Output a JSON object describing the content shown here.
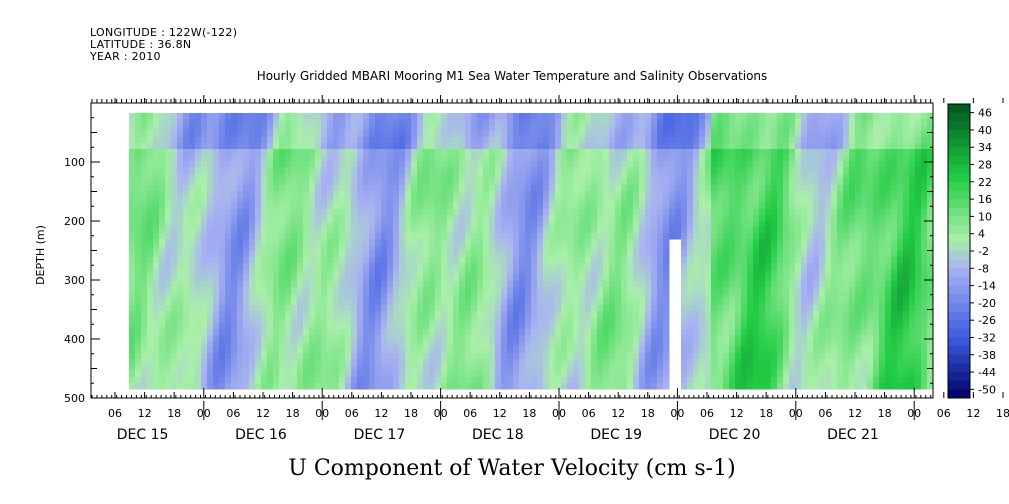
{
  "header": {
    "longitude": "LONGITUDE : 122W(-122)",
    "latitude": "LATITUDE : 36.8N",
    "year": "YEAR : 2010"
  },
  "chart_data": {
    "type": "heatmap",
    "title": "Hourly Gridded MBARI Mooring M1 Sea Water Temperature and Salinity Observations",
    "subtitle": "U Component of Water Velocity (cm s-1)",
    "ylabel": "DEPTH (m)",
    "ylim": [
      500,
      0
    ],
    "y_ticks": [
      100,
      200,
      300,
      400,
      500
    ],
    "x_hour_labels": [
      "06",
      "12",
      "18",
      "00",
      "06",
      "12",
      "18",
      "00",
      "06",
      "12",
      "18",
      "00",
      "06",
      "12",
      "18",
      "00",
      "06",
      "12",
      "18",
      "00",
      "06",
      "12",
      "18",
      "00",
      "06",
      "12",
      "18",
      "00",
      "06",
      "12",
      "18",
      "00"
    ],
    "x_day_labels": [
      "DEC 15",
      "DEC 16",
      "DEC 17",
      "DEC 18",
      "DEC 19",
      "DEC 20",
      "DEC 21"
    ],
    "colorbar": {
      "labels": [
        "46",
        "40",
        "34",
        "28",
        "22",
        "16",
        "10",
        "4",
        "-2",
        "-8",
        "-14",
        "-20",
        "-26",
        "-32",
        "-38",
        "-44",
        "-50"
      ],
      "range": [
        -50,
        50
      ]
    },
    "colors": {
      "dark_blue": "#000066",
      "mid_blue": "#3a5ae0",
      "light_blue": "#a8b2f2",
      "light_green": "#a9f0a9",
      "mid_green": "#22cc44",
      "dark_green": "#005522"
    }
  }
}
